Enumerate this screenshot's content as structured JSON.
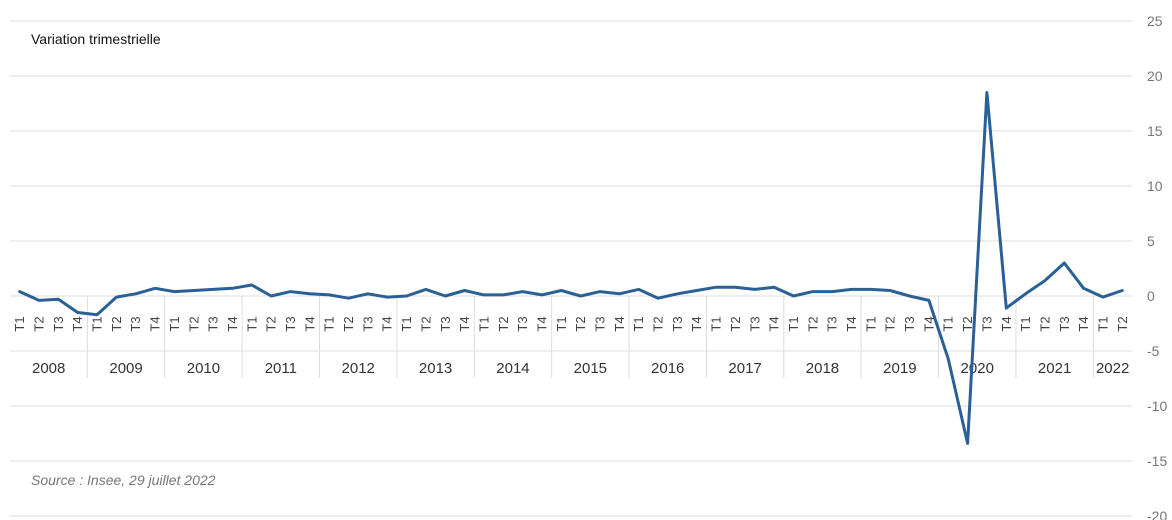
{
  "chart_data": {
    "type": "line",
    "title": "Variation trimestrielle",
    "source": "Source : Insee, 29 juillet 2022",
    "ylim": [
      -20,
      25
    ],
    "yticks": [
      "25",
      "20",
      "15",
      "10",
      "5",
      "0",
      "-5",
      "-10",
      "-15",
      "-20"
    ],
    "grid": true,
    "legend": "none",
    "colors": {
      "line": "#2a6096",
      "grid": "#dcdcdc",
      "axis_text": "#777777"
    },
    "years": [
      {
        "label": "2008",
        "quarters": [
          "T1",
          "T2",
          "T3",
          "T4"
        ]
      },
      {
        "label": "2009",
        "quarters": [
          "T1",
          "T2",
          "T3",
          "T4"
        ]
      },
      {
        "label": "2010",
        "quarters": [
          "T1",
          "T2",
          "T3",
          "T4"
        ]
      },
      {
        "label": "2011",
        "quarters": [
          "T1",
          "T2",
          "T3",
          "T4"
        ]
      },
      {
        "label": "2012",
        "quarters": [
          "T1",
          "T2",
          "T3",
          "T4"
        ]
      },
      {
        "label": "2013",
        "quarters": [
          "T1",
          "T2",
          "T3",
          "T4"
        ]
      },
      {
        "label": "2014",
        "quarters": [
          "T1",
          "T2",
          "T3",
          "T4"
        ]
      },
      {
        "label": "2015",
        "quarters": [
          "T1",
          "T2",
          "T3",
          "T4"
        ]
      },
      {
        "label": "2016",
        "quarters": [
          "T1",
          "T2",
          "T3",
          "T4"
        ]
      },
      {
        "label": "2017",
        "quarters": [
          "T1",
          "T2",
          "T3",
          "T4"
        ]
      },
      {
        "label": "2018",
        "quarters": [
          "T1",
          "T2",
          "T3",
          "T4"
        ]
      },
      {
        "label": "2019",
        "quarters": [
          "T1",
          "T2",
          "T3",
          "T4"
        ]
      },
      {
        "label": "2020",
        "quarters": [
          "T1",
          "T2",
          "T3",
          "T4"
        ]
      },
      {
        "label": "2021",
        "quarters": [
          "T1",
          "T2",
          "T3",
          "T4"
        ]
      },
      {
        "label": "2022",
        "quarters": [
          "T1",
          "T2"
        ]
      }
    ],
    "series": [
      {
        "values": [
          0.4,
          -0.4,
          -0.3,
          -1.5,
          -1.7,
          -0.1,
          0.2,
          0.7,
          0.4,
          0.5,
          0.6,
          0.7,
          1.0,
          0.0,
          0.4,
          0.2,
          0.1,
          -0.2,
          0.2,
          -0.1,
          0.0,
          0.6,
          0.0,
          0.5,
          0.1,
          0.1,
          0.4,
          0.1,
          0.5,
          0.0,
          0.4,
          0.2,
          0.6,
          -0.2,
          0.2,
          0.5,
          0.8,
          0.8,
          0.6,
          0.8,
          0.0,
          0.4,
          0.4,
          0.6,
          0.6,
          0.5,
          0.0,
          -0.4,
          -5.7,
          -13.4,
          18.5,
          -1.1,
          0.2,
          1.4,
          3.0,
          0.7,
          -0.1,
          0.5
        ]
      }
    ]
  }
}
